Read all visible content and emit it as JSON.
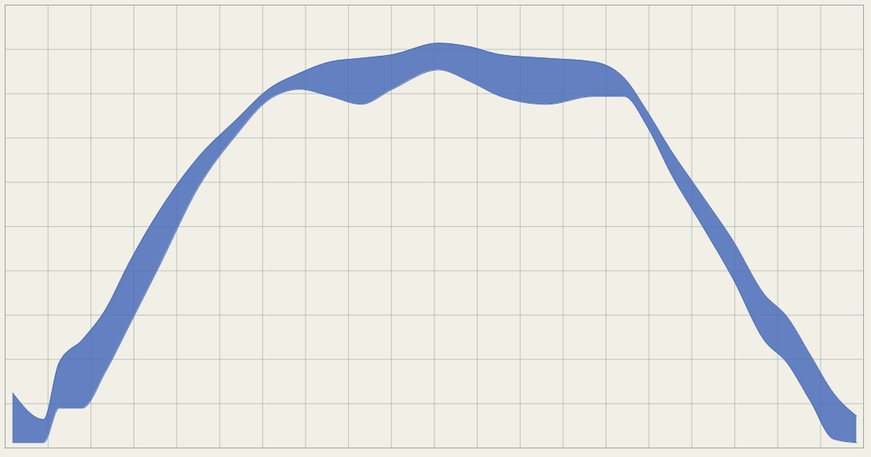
{
  "chart_data": {
    "type": "area",
    "x": [
      0.9,
      4.5,
      6.3,
      9,
      11.7,
      14.4,
      18,
      22.5,
      27,
      30.7,
      34.3,
      37.9,
      41.5,
      45.1,
      50.5,
      54.1,
      57.7,
      63.1,
      68.5,
      72.1,
      74.8,
      77.5,
      81.2,
      84.8,
      88.4,
      91.1,
      93.8,
      96.5,
      99.2
    ],
    "upper": [
      6.2,
      3.2,
      9.6,
      12.2,
      15.6,
      20.8,
      26.8,
      32.8,
      37.1,
      40.5,
      42.3,
      43.6,
      44.0,
      44.4,
      45.7,
      45.3,
      44.4,
      44.0,
      43.6,
      41.8,
      38.0,
      33.7,
      28.5,
      23.4,
      17.4,
      14.8,
      10.5,
      6.2,
      3.6
    ],
    "lower": [
      0.6,
      0.6,
      4.5,
      4.5,
      8.6,
      13.7,
      20.6,
      29.4,
      35.4,
      39.3,
      40.5,
      39.7,
      38.8,
      40.5,
      42.7,
      41.4,
      39.7,
      38.8,
      39.7,
      39.7,
      36.3,
      31.1,
      25.1,
      19.1,
      12.2,
      9.6,
      5.3,
      1.0,
      0.6
    ],
    "color": "#4a6cb8",
    "xlim": [
      0,
      100
    ],
    "ylim": [
      0,
      50
    ],
    "xticks": [
      0,
      5,
      10,
      15,
      20,
      25,
      30,
      35,
      40,
      45,
      50,
      55,
      60,
      65,
      70,
      75,
      80,
      85,
      90,
      95,
      100
    ],
    "yticks": [
      0,
      5,
      10,
      15,
      20,
      25,
      30,
      35,
      40,
      45,
      50
    ],
    "grid": true,
    "tick_labels": false
  }
}
